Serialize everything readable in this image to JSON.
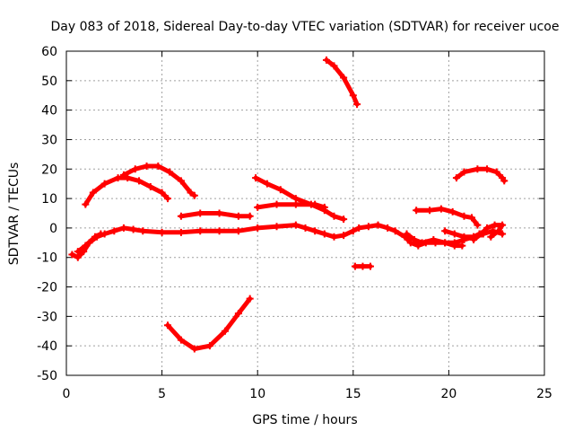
{
  "chart_data": {
    "type": "scatter",
    "title": "Day 083 of 2018, Sidereal Day-to-day VTEC variation (SDTVAR) for receiver ucoe",
    "xlabel": "GPS time / hours",
    "ylabel": "SDTVAR / TECUs",
    "xlim": [
      0,
      25
    ],
    "ylim": [
      -50,
      60
    ],
    "xticks": [
      "0",
      "5",
      "10",
      "15",
      "20",
      "25"
    ],
    "yticks": [
      "60",
      "50",
      "40",
      "30",
      "20",
      "10",
      "0",
      "-10",
      "-20",
      "-30",
      "-40",
      "-50"
    ],
    "grid": true,
    "series_color": "#ff0000",
    "series": [
      {
        "points": [
          [
            0.3,
            -9
          ],
          [
            0.6,
            -10
          ],
          [
            0.9,
            -8
          ],
          [
            1.2,
            -5
          ],
          [
            1.6,
            -3
          ],
          [
            2.0,
            -2
          ],
          [
            2.5,
            -1
          ],
          [
            3,
            0
          ],
          [
            3.5,
            -0.5
          ],
          [
            4,
            -1
          ],
          [
            5,
            -1.5
          ],
          [
            6,
            -1.5
          ],
          [
            7,
            -1
          ],
          [
            8,
            -1
          ],
          [
            9,
            -1
          ],
          [
            10,
            0
          ],
          [
            11,
            0.5
          ],
          [
            12,
            1
          ],
          [
            12.5,
            0
          ],
          [
            13,
            -1
          ],
          [
            13.5,
            -2
          ],
          [
            14,
            -3
          ],
          [
            14.5,
            -2.5
          ],
          [
            15,
            -1
          ],
          [
            15.3,
            0
          ],
          [
            15.8,
            0.5
          ],
          [
            16.3,
            1
          ],
          [
            16.8,
            0
          ],
          [
            17.2,
            -1
          ],
          [
            17.7,
            -3
          ],
          [
            18,
            -5
          ],
          [
            18.4,
            -6
          ],
          [
            18.8,
            -5
          ],
          [
            19.3,
            -5
          ],
          [
            19.8,
            -5
          ],
          [
            20.3,
            -6
          ],
          [
            20.7,
            -6
          ]
        ]
      },
      {
        "points": [
          [
            0.6,
            -8
          ],
          [
            1.0,
            -6
          ],
          [
            1.5,
            -3
          ],
          [
            1.8,
            -2
          ]
        ]
      },
      {
        "points": [
          [
            17.8,
            -2
          ],
          [
            18.2,
            -4
          ],
          [
            18.6,
            -5
          ],
          [
            19.2,
            -4
          ],
          [
            19.8,
            -5
          ],
          [
            20.3,
            -5
          ],
          [
            20.8,
            -4
          ],
          [
            21.3,
            -3
          ],
          [
            21.8,
            -2
          ],
          [
            22.3,
            -1
          ],
          [
            22.8,
            -2
          ]
        ]
      },
      {
        "points": [
          [
            19.8,
            -1
          ],
          [
            20.3,
            -2
          ],
          [
            20.8,
            -3
          ],
          [
            21.3,
            -3
          ],
          [
            21.6,
            -2
          ]
        ]
      },
      {
        "points": [
          [
            21.3,
            -4
          ],
          [
            21.7,
            -2
          ],
          [
            22.0,
            0
          ],
          [
            22.4,
            1
          ],
          [
            22.8,
            1
          ],
          [
            22.6,
            -1
          ],
          [
            22.2,
            -3
          ]
        ]
      },
      {
        "points": [
          [
            1.0,
            8
          ],
          [
            1.4,
            12
          ],
          [
            2.0,
            15
          ],
          [
            2.7,
            17
          ],
          [
            3.2,
            17
          ],
          [
            3.8,
            16
          ],
          [
            4.4,
            14
          ],
          [
            5.0,
            12
          ],
          [
            5.3,
            10
          ]
        ]
      },
      {
        "points": [
          [
            3.0,
            18
          ],
          [
            3.6,
            20
          ],
          [
            4.2,
            21
          ],
          [
            4.8,
            21
          ],
          [
            5.4,
            19
          ],
          [
            6.0,
            16
          ],
          [
            6.5,
            12
          ],
          [
            6.7,
            11
          ]
        ]
      },
      {
        "points": [
          [
            6.0,
            4
          ],
          [
            7.0,
            5
          ],
          [
            8.0,
            5
          ],
          [
            9.0,
            4
          ],
          [
            9.6,
            4
          ]
        ]
      },
      {
        "points": [
          [
            5.3,
            -33
          ],
          [
            6.0,
            -38
          ],
          [
            6.7,
            -41
          ],
          [
            7.5,
            -40
          ],
          [
            8.3,
            -35
          ],
          [
            9.0,
            -29
          ],
          [
            9.6,
            -24
          ]
        ]
      },
      {
        "points": [
          [
            9.9,
            17
          ],
          [
            10.5,
            15
          ],
          [
            11.2,
            13
          ],
          [
            12.0,
            10
          ],
          [
            12.8,
            8
          ],
          [
            13.5,
            6
          ],
          [
            14.0,
            4
          ],
          [
            14.5,
            3
          ]
        ]
      },
      {
        "points": [
          [
            10.0,
            7
          ],
          [
            11.0,
            8
          ],
          [
            12.0,
            8
          ],
          [
            13.0,
            8
          ],
          [
            13.5,
            7
          ]
        ]
      },
      {
        "points": [
          [
            13.6,
            57
          ],
          [
            14.0,
            55
          ],
          [
            14.5,
            51
          ],
          [
            15.0,
            45
          ],
          [
            15.2,
            42
          ]
        ]
      },
      {
        "points": [
          [
            15.1,
            -13
          ],
          [
            15.5,
            -13
          ],
          [
            15.9,
            -13
          ]
        ]
      },
      {
        "points": [
          [
            18.3,
            6
          ],
          [
            19.0,
            6
          ],
          [
            19.6,
            6.5
          ],
          [
            20.2,
            5.5
          ],
          [
            20.8,
            4
          ],
          [
            21.2,
            3.5
          ],
          [
            21.5,
            1
          ]
        ]
      },
      {
        "points": [
          [
            20.4,
            17
          ],
          [
            20.8,
            19
          ],
          [
            21.5,
            20
          ],
          [
            22.0,
            20
          ],
          [
            22.5,
            19
          ],
          [
            22.8,
            17
          ],
          [
            22.9,
            16
          ]
        ]
      }
    ]
  }
}
